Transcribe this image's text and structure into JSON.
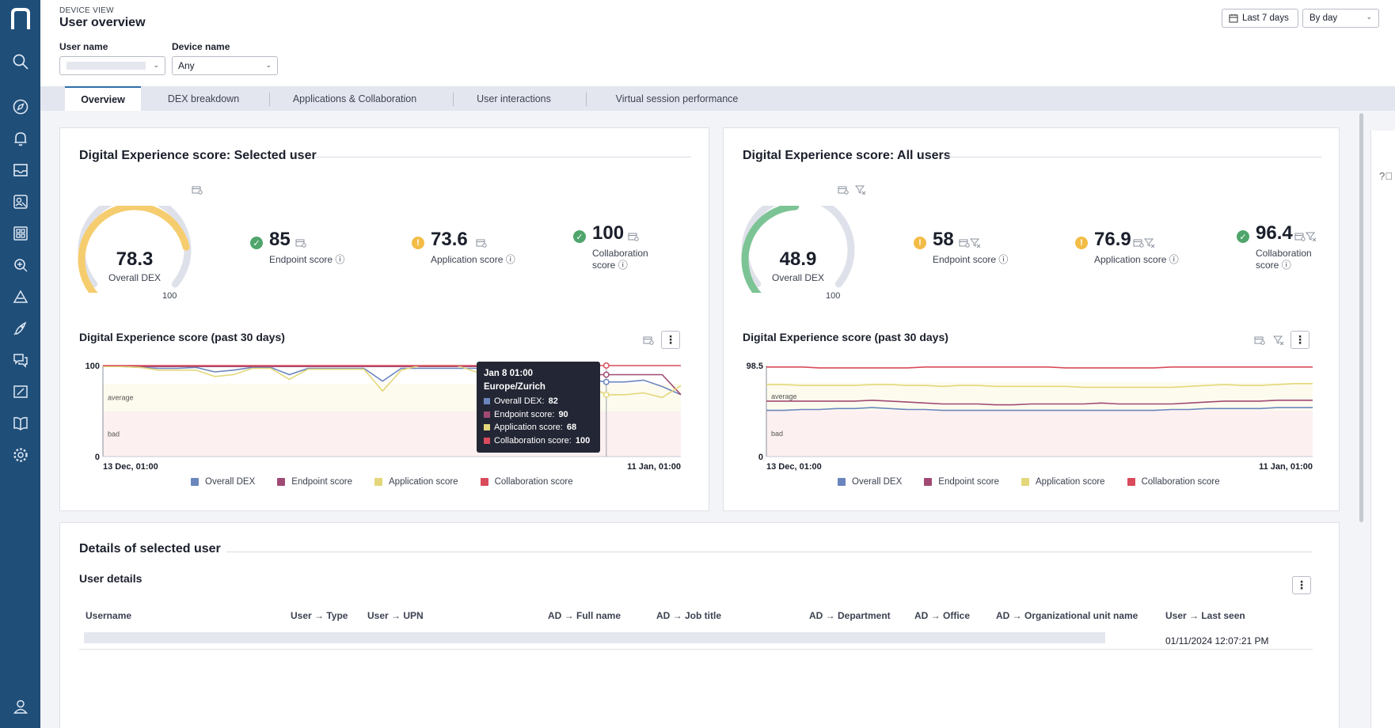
{
  "header": {
    "eyebrow": "DEVICE VIEW",
    "title": "User overview",
    "user_name_label": "User name",
    "device_name_label": "Device name",
    "device_name_value": "Any",
    "time_range": "Last 7 days",
    "granularity": "By day"
  },
  "tabs": [
    "Overview",
    "DEX breakdown",
    "Applications & Collaboration",
    "User interactions",
    "Virtual session performance"
  ],
  "selected_user": {
    "title": "Digital Experience score: Selected user",
    "gauge": {
      "value": "78.3",
      "label": "Overall DEX",
      "max": "100",
      "fraction": 0.783,
      "color": "#f5cd6e"
    },
    "endpoint": {
      "value": "85",
      "label": "Endpoint score",
      "status": "good"
    },
    "application": {
      "value": "73.6",
      "label": "Application score",
      "status": "warning"
    },
    "collaboration": {
      "value": "100",
      "label1": "Collaboration",
      "label2": "score",
      "status": "good"
    },
    "chart_title": "Digital Experience score (past 30 days)",
    "tooltip": {
      "title": "Jan 8 01:00 Europe/Zurich",
      "rows": [
        {
          "label": "Overall DEX:",
          "value": "82",
          "color": "#6b86bd"
        },
        {
          "label": "Endpoint score:",
          "value": "90",
          "color": "#a04a73"
        },
        {
          "label": "Application score:",
          "value": "68",
          "color": "#e3d77a"
        },
        {
          "label": "Collaboration score:",
          "value": "100",
          "color": "#d94b5a"
        }
      ]
    }
  },
  "all_users": {
    "title": "Digital Experience score: All users",
    "gauge": {
      "value": "48.9",
      "label": "Overall DEX",
      "max": "100",
      "fraction": 0.489,
      "color": "#7cc495"
    },
    "endpoint": {
      "value": "58",
      "label": "Endpoint score",
      "status": "warning"
    },
    "application": {
      "value": "76.9",
      "label": "Application score",
      "status": "warning"
    },
    "collaboration": {
      "value": "96.4",
      "label1": "Collaboration",
      "label2": "score",
      "status": "good"
    },
    "chart_title": "Digital Experience score (past 30 days)"
  },
  "chart_data": [
    {
      "type": "line",
      "title": "Digital Experience score (past 30 days)",
      "x_start_label": "13 Dec, 01:00",
      "x_end_label": "11 Jan, 01:00",
      "y_max_label": "100",
      "y_min_label": "0",
      "ylim": [
        0,
        100
      ],
      "bands": [
        {
          "name": "average",
          "from": 50,
          "to": 80
        },
        {
          "name": "bad",
          "from": 0,
          "to": 50
        }
      ],
      "series": [
        {
          "name": "Overall DEX",
          "color": "#6b86bd",
          "values": [
            99,
            99,
            98,
            97,
            97,
            98,
            93,
            95,
            98,
            98,
            90,
            97,
            97,
            97,
            97,
            83,
            97,
            97,
            97,
            97,
            97,
            96,
            96,
            90,
            92,
            94,
            85,
            82,
            82,
            84,
            77,
            68
          ]
        },
        {
          "name": "Endpoint score",
          "color": "#a04a73",
          "values": [
            99,
            99,
            99,
            99,
            99,
            99,
            99,
            99,
            99,
            99,
            99,
            99,
            99,
            99,
            99,
            99,
            99,
            99,
            99,
            99,
            99,
            99,
            99,
            99,
            98,
            98,
            90,
            90,
            90,
            90,
            90,
            68
          ]
        },
        {
          "name": "Application score",
          "color": "#e3d77a",
          "values": [
            99,
            99,
            98,
            95,
            95,
            95,
            88,
            90,
            97,
            97,
            85,
            96,
            96,
            96,
            96,
            72,
            95,
            100,
            100,
            100,
            93,
            93,
            95,
            88,
            88,
            90,
            78,
            68,
            68,
            70,
            65,
            78
          ]
        },
        {
          "name": "Collaboration score",
          "color": "#d94b5a",
          "values": [
            100,
            100,
            100,
            100,
            100,
            100,
            100,
            100,
            100,
            100,
            100,
            100,
            100,
            100,
            100,
            100,
            100,
            100,
            100,
            100,
            100,
            100,
            100,
            100,
            100,
            100,
            100,
            100,
            100,
            100,
            100,
            100
          ]
        }
      ]
    },
    {
      "type": "line",
      "title": "Digital Experience score (past 30 days)",
      "x_start_label": "13 Dec, 01:00",
      "x_end_label": "11 Jan, 01:00",
      "y_max_label": "98.5",
      "y_min_label": "0",
      "ylim": [
        0,
        98.5
      ],
      "bands": [
        {
          "name": "average",
          "from": 50,
          "to": 80
        },
        {
          "name": "bad",
          "from": 0,
          "to": 50
        }
      ],
      "series": [
        {
          "name": "Overall DEX",
          "color": "#6b86bd",
          "values": [
            50,
            50,
            51,
            51,
            52,
            52,
            53,
            52,
            51,
            51,
            50,
            50,
            50,
            50,
            50,
            50,
            50,
            50,
            50,
            50,
            50,
            50,
            50,
            51,
            51,
            52,
            52,
            52,
            52,
            53,
            53,
            53
          ]
        },
        {
          "name": "Endpoint score",
          "color": "#a04a73",
          "values": [
            60,
            60,
            60,
            60,
            60,
            60,
            61,
            60,
            59,
            58,
            57,
            57,
            57,
            56,
            56,
            57,
            57,
            57,
            57,
            58,
            57,
            57,
            57,
            57,
            58,
            59,
            60,
            60,
            60,
            61,
            61,
            61
          ]
        },
        {
          "name": "Application score",
          "color": "#e3d77a",
          "values": [
            78,
            78,
            77,
            77,
            77,
            77,
            78,
            78,
            77,
            77,
            76,
            77,
            77,
            76,
            76,
            76,
            76,
            76,
            75,
            75,
            75,
            75,
            75,
            75,
            76,
            77,
            78,
            77,
            77,
            78,
            79,
            79
          ]
        },
        {
          "name": "Collaboration score",
          "color": "#d94b5a",
          "values": [
            97,
            97,
            97,
            96,
            96,
            96,
            96,
            96,
            96,
            97,
            97,
            97,
            97,
            97,
            97,
            97,
            97,
            96,
            96,
            96,
            96,
            96,
            96,
            97,
            97,
            97,
            97,
            97,
            97,
            97,
            97,
            97
          ]
        }
      ]
    }
  ],
  "details": {
    "title": "Details of selected user",
    "subtitle": "User details",
    "columns": [
      "Username",
      "User → Type",
      "User → UPN",
      "AD → Full name",
      "AD → Job title",
      "AD → Department",
      "AD → Office",
      "AD → Organizational unit name",
      "User → Last seen"
    ],
    "last_seen": "01/11/2024 12:07:21 PM"
  }
}
